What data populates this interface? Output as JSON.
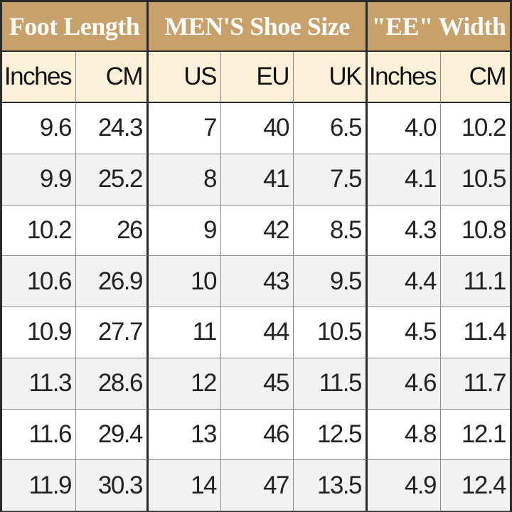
{
  "header": {
    "groups": [
      "Foot Length",
      "MEN'S Shoe Size",
      "\"EE\" Width"
    ],
    "columns": [
      "Inches",
      "CM",
      "US",
      "EU",
      "UK",
      "Inches",
      "CM"
    ]
  },
  "table": {
    "rows": [
      [
        "9.6",
        "24.3",
        "7",
        "40",
        "6.5",
        "4.0",
        "10.2"
      ],
      [
        "9.9",
        "25.2",
        "8",
        "41",
        "7.5",
        "4.1",
        "10.5"
      ],
      [
        "10.2",
        "26",
        "9",
        "42",
        "8.5",
        "4.3",
        "10.8"
      ],
      [
        "10.6",
        "26.9",
        "10",
        "43",
        "9.5",
        "4.4",
        "11.1"
      ],
      [
        "10.9",
        "27.7",
        "11",
        "44",
        "10.5",
        "4.5",
        "11.4"
      ],
      [
        "11.3",
        "28.6",
        "12",
        "45",
        "11.5",
        "4.6",
        "11.7"
      ],
      [
        "11.6",
        "29.4",
        "13",
        "46",
        "12.5",
        "4.8",
        "12.1"
      ],
      [
        "11.9",
        "30.3",
        "14",
        "47",
        "13.5",
        "4.9",
        "12.4"
      ]
    ]
  }
}
